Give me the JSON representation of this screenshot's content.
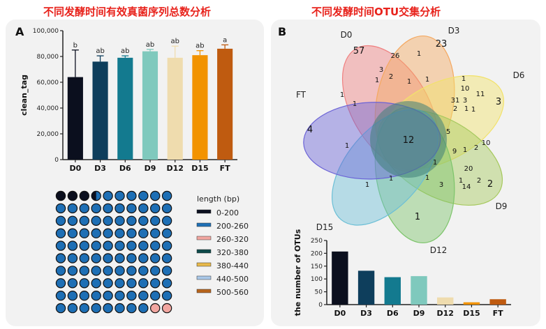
{
  "titles": {
    "left": "不同发酵时间有效真菌序列总数分析",
    "right": "不同发酵时间OTU交集分析"
  },
  "panels": {
    "a": "A",
    "b": "B"
  },
  "chart_data": [
    {
      "type": "bar",
      "categories": [
        "D0",
        "D3",
        "D6",
        "D9",
        "D12",
        "D15",
        "FT"
      ],
      "values": [
        64000,
        76000,
        79000,
        84000,
        79000,
        81000,
        86000
      ],
      "errors": [
        21000,
        4500,
        1500,
        1500,
        9000,
        3500,
        3000
      ],
      "significance": [
        "b",
        "ab",
        "ab",
        "ab",
        "ab",
        "ab",
        "a"
      ],
      "colors": [
        "#0b0f1e",
        "#0e3e5c",
        "#137a8f",
        "#7fc9bd",
        "#efdcae",
        "#f29300",
        "#bf5b10"
      ],
      "ylabel": "clean_tag",
      "ylim": [
        0,
        100000
      ],
      "yticks": [
        "0",
        "20,000",
        "40,000",
        "60,000",
        "80,000",
        "100,000"
      ],
      "grid": false
    },
    {
      "type": "waffle",
      "legend_title": "length (bp)",
      "legend": [
        {
          "label": "0-200",
          "color": "#0b0f1e"
        },
        {
          "label": "200-260",
          "color": "#1e6fb5"
        },
        {
          "label": "260-320",
          "color": "#f2a6a0"
        },
        {
          "label": "320-380",
          "color": "#0e4a4a"
        },
        {
          "label": "380-440",
          "color": "#e8b94a"
        },
        {
          "label": "440-500",
          "color": "#a9c8e8"
        },
        {
          "label": "500-560",
          "color": "#b8651c"
        }
      ],
      "rows": 10,
      "cols": 10,
      "cells_0_200": 3.5,
      "cells_260_320": 2,
      "main_color": "#1e6fb5"
    },
    {
      "type": "venn",
      "sets": [
        {
          "name": "D0",
          "color": "#f08080"
        },
        {
          "name": "D3",
          "color": "#f4a860"
        },
        {
          "name": "D6",
          "color": "#f2e26a"
        },
        {
          "name": "D9",
          "color": "#a6c95e"
        },
        {
          "name": "D12",
          "color": "#7cc46a"
        },
        {
          "name": "D15",
          "color": "#6cbfd6"
        },
        {
          "name": "FT",
          "color": "#6b63d6"
        }
      ],
      "core": "12",
      "numbers": [
        "57",
        "26",
        "1",
        "23",
        "3",
        "2",
        "1",
        "1",
        "1",
        "10",
        "11",
        "31",
        "3",
        "3",
        "2",
        "1",
        "1",
        "1",
        "4",
        "1",
        "1",
        "1",
        "5",
        "9",
        "1",
        "2",
        "10",
        "2",
        "20",
        "1",
        "14",
        "2",
        "1",
        "1",
        "1",
        "3",
        "1",
        "1"
      ]
    },
    {
      "type": "bar",
      "categories": [
        "D0",
        "D3",
        "D6",
        "D9",
        "D12",
        "D15",
        "FT"
      ],
      "values": [
        207,
        132,
        107,
        111,
        28,
        9,
        21
      ],
      "colors": [
        "#0b0f1e",
        "#0e3e5c",
        "#137a8f",
        "#7fc9bd",
        "#efdcae",
        "#f29300",
        "#bf5b10"
      ],
      "ylabel": "the number of OTUs",
      "ylim": [
        0,
        250
      ],
      "yticks": [
        "0",
        "50",
        "100",
        "150",
        "200",
        "250"
      ],
      "grid": false
    }
  ]
}
